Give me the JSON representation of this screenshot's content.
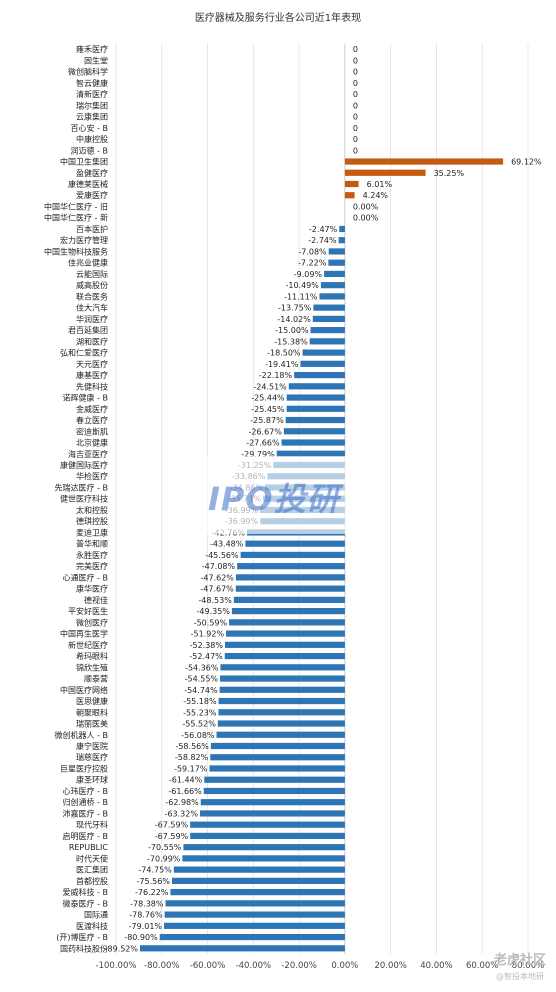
{
  "chart_data": {
    "type": "bar",
    "orientation": "horizontal",
    "title": "医疗器械及服务行业各公司近1年表现",
    "xlim": [
      -100,
      80
    ],
    "xticks": [
      "-100.00%",
      "-80.00%",
      "-60.00%",
      "-40.00%",
      "-20.00%",
      "0.00%",
      "20.00%",
      "40.00%",
      "60.00%",
      "80.00%"
    ],
    "grid": true,
    "colors": {
      "positive": "#C55A11",
      "negative": "#2E75B6"
    },
    "categories": [
      "雍禾医疗",
      "固生堂",
      "微创脑科学",
      "智云健康",
      "清新医疗",
      "瑞尔集团",
      "云康集团",
      "百心安 - B",
      "中康控股",
      "润迈德 - B",
      "中国卫生集团",
      "盈健医疗",
      "康德莱医械",
      "爱康医疗",
      "中国华仁医疗 - 旧",
      "中国华仁医疗 - 新",
      "百本医护",
      "宏力医疗管理",
      "中国生物科技服务",
      "佳兆业健康",
      "云能国际",
      "威高股份",
      "联合医务",
      "佳大汽车",
      "华润医疗",
      "君百延集团",
      "湖和医疗",
      "弘和仁爱医疗",
      "天元医疗",
      "康基医疗",
      "先健科技",
      "诺辉健康 - B",
      "金威医疗",
      "春立医疗",
      "密迪斯肌",
      "北京健康",
      "海吉亚医疗",
      "康健国际医疗",
      "华检医疗",
      "先瑞达医疗 - B",
      "健世医疗科技",
      "太和控股",
      "德琪控股",
      "麦迪卫康",
      "普华和顺",
      "永胜医疗",
      "完美医疗",
      "心通医疗 - B",
      "康华医疗",
      "德视佳",
      "平安好医生",
      "微创医疗",
      "中国再生医学",
      "新世纪医疗",
      "希玛眼科",
      "锦欣生殖",
      "顺泰营",
      "中国医疗网络",
      "医思健康",
      "朝聚眼科",
      "瑞丽医美",
      "微创机器人 - B",
      "康宁医院",
      "瑞慈医疗",
      "巨星医疗控股",
      "康圣环球",
      "心玮医疗 - B",
      "归创通桥 - B",
      "沛嘉医疗 - B",
      "现代牙科",
      "启明医疗 - B",
      "REPUBLIC",
      "时代天使",
      "医汇集团",
      "首都控股",
      "爱威科技 - B",
      "微泰医疗 - B",
      "国际通",
      "医渡科技",
      "(开)博医疗 - B",
      "国药科技股份"
    ],
    "values": [
      0,
      0,
      0,
      0,
      0,
      0,
      0,
      0,
      0,
      0,
      69.12,
      35.25,
      6.01,
      4.24,
      0.0,
      0.0,
      -2.47,
      -2.74,
      -7.08,
      -7.22,
      -9.09,
      -10.49,
      -11.11,
      -13.75,
      -14.02,
      -15.0,
      -15.38,
      -18.5,
      -19.41,
      -22.18,
      -24.51,
      -25.44,
      -25.45,
      -25.87,
      -26.67,
      -27.66,
      -29.79,
      -31.25,
      -33.86,
      -34.86,
      -35.71,
      -36.99,
      -36.99,
      -42.76,
      -43.48,
      -45.56,
      -47.08,
      -47.62,
      -47.67,
      -48.53,
      -49.35,
      -50.59,
      -51.92,
      -52.38,
      -52.47,
      -54.36,
      -54.55,
      -54.74,
      -55.18,
      -55.23,
      -55.52,
      -56.08,
      -58.56,
      -58.82,
      -59.17,
      -61.44,
      -61.66,
      -62.98,
      -63.32,
      -67.59,
      -67.59,
      -70.55,
      -70.99,
      -74.75,
      -75.56,
      -76.22,
      -78.38,
      -78.76,
      -79.01,
      -80.9,
      -89.52
    ],
    "value_labels": [
      "0",
      "0",
      "0",
      "0",
      "0",
      "0",
      "0",
      "0",
      "0",
      "0",
      "69.12%",
      "35.25%",
      "6.01%",
      "4.24%",
      "0.00%",
      "0.00%",
      "-2.47%",
      "-2.74%",
      "-7.08%",
      "-7.22%",
      "-9.09%",
      "-10.49%",
      "-11.11%",
      "-13.75%",
      "-14.02%",
      "-15.00%",
      "-15.38%",
      "-18.50%",
      "-19.41%",
      "-22.18%",
      "-24.51%",
      "-25.44%",
      "-25.45%",
      "-25.87%",
      "-26.67%",
      "-27.66%",
      "-29.79%",
      "-31.25%",
      "-33.86%",
      "-34.86%",
      "-35.71%",
      "-36.99%",
      "-36.99%",
      "-42.76%",
      "-43.48%",
      "-45.56%",
      "-47.08%",
      "-47.62%",
      "-47.67%",
      "-48.53%",
      "-49.35%",
      "-50.59%",
      "-51.92%",
      "-52.38%",
      "-52.47%",
      "-54.36%",
      "-54.55%",
      "-54.74%",
      "-55.18%",
      "-55.23%",
      "-55.52%",
      "-56.08%",
      "-58.56%",
      "-58.82%",
      "-59.17%",
      "-61.44%",
      "-61.66%",
      "-62.98%",
      "-63.32%",
      "-67.59%",
      "-67.59%",
      "-70.55%",
      "-70.99%",
      "-74.75%",
      "-75.56%",
      "-76.22%",
      "-78.38%",
      "-78.76%",
      "-79.01%",
      "-80.90%",
      "-89.52%"
    ]
  },
  "watermark": {
    "text": "IPO投研"
  },
  "corner": {
    "brand": "老虎社区",
    "sub": "@智投本地研"
  }
}
